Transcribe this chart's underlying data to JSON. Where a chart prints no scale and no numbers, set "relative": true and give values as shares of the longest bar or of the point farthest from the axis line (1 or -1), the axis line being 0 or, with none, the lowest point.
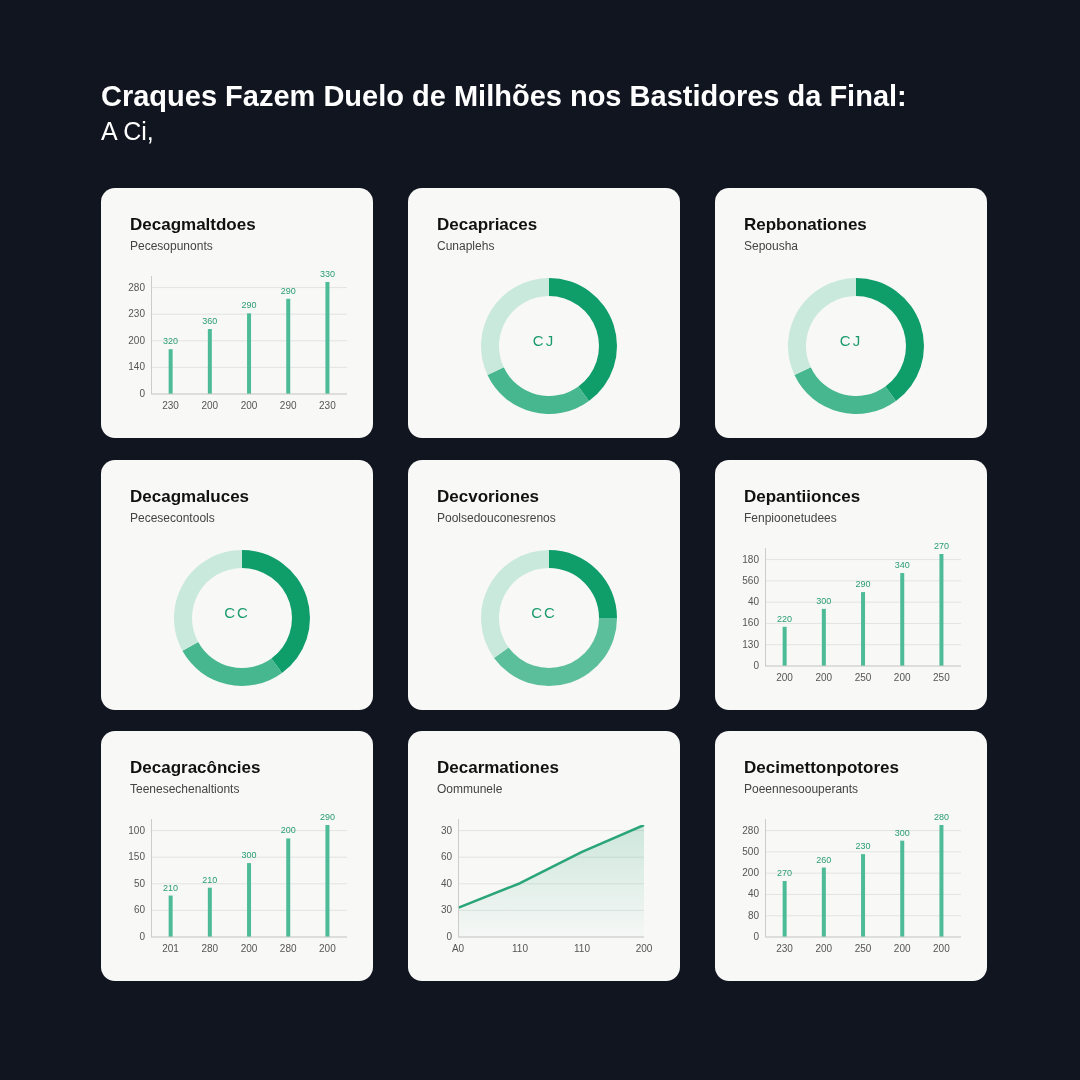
{
  "chart_data": [
    {
      "type": "other",
      "title": "Craques Fazem Duelo de Milhões nos Bastidores da Final:",
      "subtitle": "A Ci,"
    },
    {
      "type": "bar",
      "title": "Decagmaltdoes",
      "subtitle": "Pecesopunonts",
      "categories": [
        "230",
        "200",
        "200",
        "290",
        "230"
      ],
      "values": [
        0.4,
        0.58,
        0.72,
        0.85,
        1
      ],
      "relative": true,
      "color": "#4dbb98",
      "grid": "y",
      "annotations": [
        "0",
        "140",
        "200",
        "230",
        "280",
        "320",
        "360",
        "290",
        "290",
        "330"
      ]
    },
    {
      "type": "donut",
      "title": "Decapriaces",
      "subtitle": "Cunaplehs",
      "categories": [
        null,
        null,
        null
      ],
      "values": [
        40,
        28,
        32
      ],
      "colors": [
        "#0f9d6a",
        "#47b78f",
        "#c9e9dc"
      ],
      "annotations": [
        "CJ"
      ]
    },
    {
      "type": "donut",
      "title": "Repbonationes",
      "subtitle": "Sepousha",
      "categories": [
        null,
        null,
        null
      ],
      "values": [
        40,
        28,
        32
      ],
      "colors": [
        "#0f9d6a",
        "#47b78f",
        "#c9e9dc"
      ],
      "annotations": [
        "CJ"
      ]
    },
    {
      "type": "donut",
      "title": "Decagmaluces",
      "subtitle": "Pecesecontools",
      "categories": [
        null,
        null,
        null
      ],
      "values": [
        40,
        27,
        33
      ],
      "colors": [
        "#0f9d6a",
        "#47b78f",
        "#c9e9dc"
      ],
      "annotations": [
        "CC"
      ]
    },
    {
      "type": "donut",
      "title": "Decvoriones",
      "subtitle": "Poolsedouconesrenos",
      "categories": [
        null,
        null,
        null
      ],
      "values": [
        25,
        40,
        35
      ],
      "colors": [
        "#0f9d6a",
        "#5cbf9b",
        "#c9e9dc"
      ],
      "annotations": [
        "CC"
      ]
    },
    {
      "type": "bar",
      "title": "Depantiionces",
      "subtitle": "Fenpioonetudees",
      "categories": [
        "200",
        "200",
        "250",
        "200",
        "250"
      ],
      "values": [
        0.35,
        0.51,
        0.66,
        0.83,
        1
      ],
      "relative": true,
      "color": "#4dbb98",
      "grid": "y",
      "annotations": [
        "0",
        "130",
        "160",
        "40",
        "560",
        "180",
        "220",
        "300",
        "290",
        "340",
        "270"
      ]
    },
    {
      "type": "bar",
      "title": "Decagracôncies",
      "subtitle": "Teenesechenaltionts",
      "categories": [
        "201",
        "280",
        "200",
        "280",
        "200"
      ],
      "values": [
        0.37,
        0.44,
        0.66,
        0.88,
        1
      ],
      "relative": true,
      "color": "#4dbb98",
      "grid": "y",
      "annotations": [
        "0",
        "60",
        "50",
        "150",
        "100",
        "210",
        "210",
        "300",
        "200",
        "290"
      ]
    },
    {
      "type": "area",
      "title": "Decarmationes",
      "subtitle": "Oommunele",
      "categories": [
        "A0",
        "110",
        "110",
        "200"
      ],
      "values": [
        0.26,
        0.48,
        0.76,
        1
      ],
      "relative": true,
      "color": "#2aa57a",
      "grid": "y",
      "annotations": [
        "0",
        "30",
        "40",
        "60",
        "30"
      ]
    },
    {
      "type": "bar",
      "title": "Decimettonpotores",
      "subtitle": "Poeennesoouperants",
      "categories": [
        "230",
        "200",
        "250",
        "200",
        "200"
      ],
      "values": [
        0.5,
        0.62,
        0.74,
        0.86,
        1
      ],
      "relative": true,
      "color": "#4dbb98",
      "grid": "y",
      "annotations": [
        "0",
        "80",
        "40",
        "200",
        "500",
        "280",
        "270",
        "260",
        "230",
        "300",
        "280"
      ]
    }
  ]
}
